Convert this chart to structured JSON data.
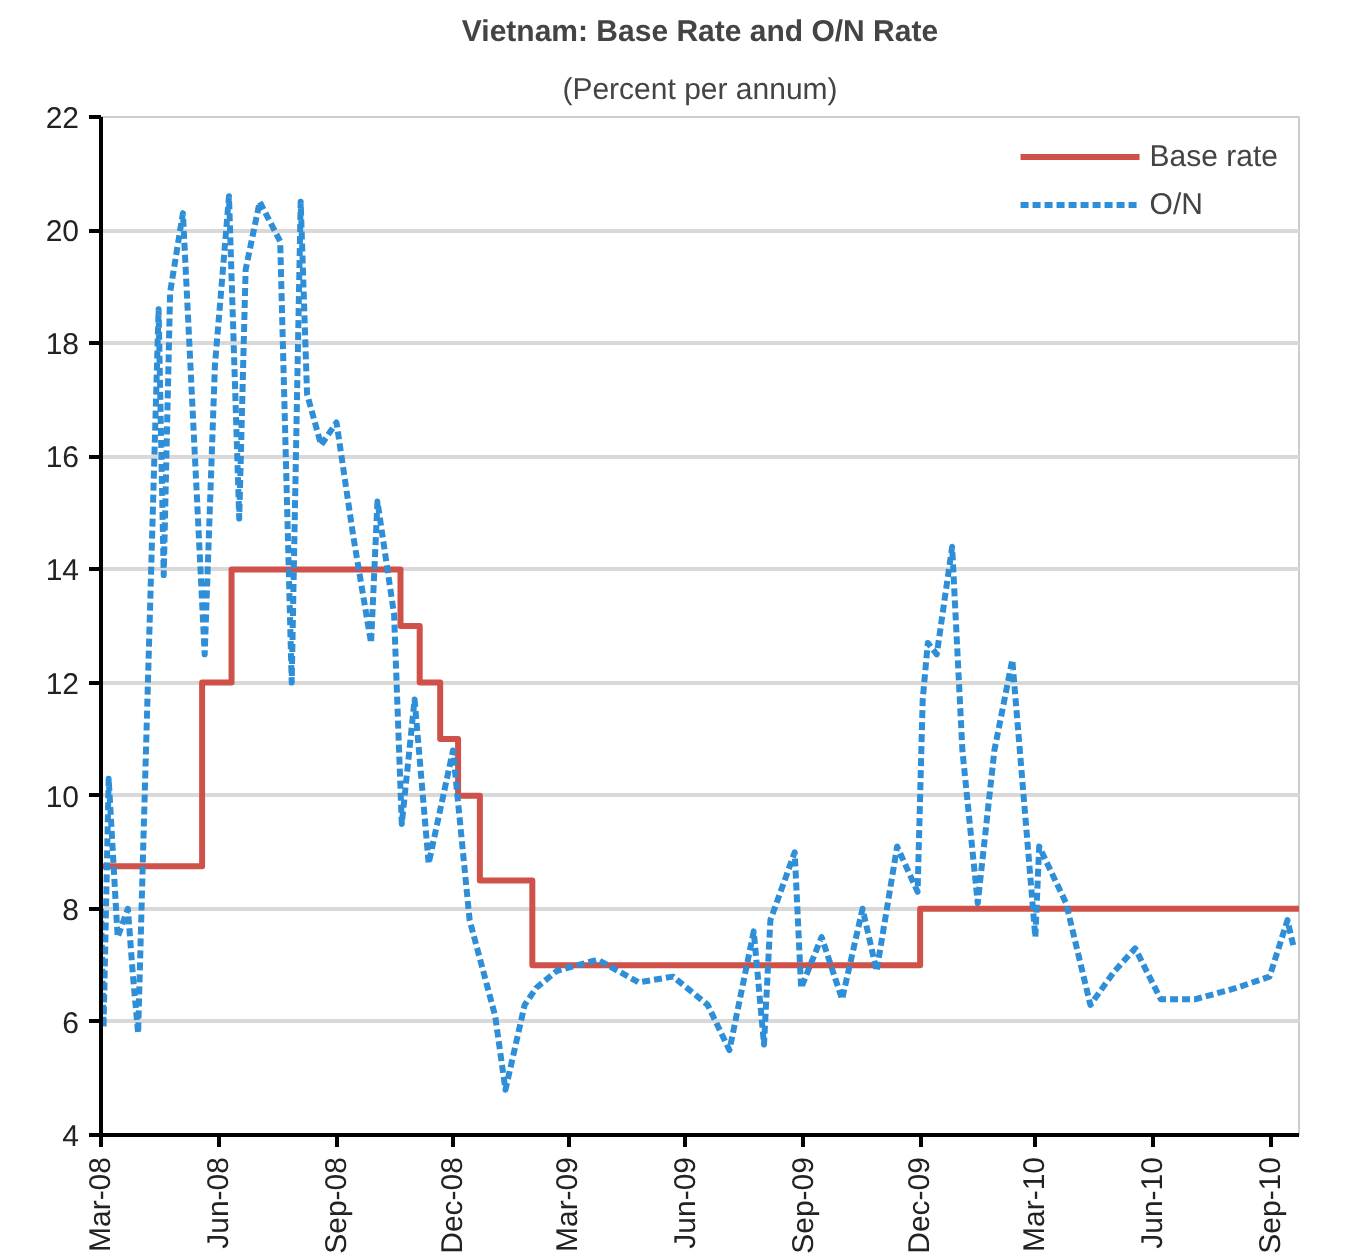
{
  "chart_data": {
    "type": "line",
    "title": "Vietnam: Base Rate and O/N Rate",
    "subtitle": "(Percent per annum)",
    "xlim": [
      "2008-03-01",
      "2010-09-23"
    ],
    "xticks": [
      {
        "value": "2008-03-01",
        "label": "Mar-08"
      },
      {
        "value": "2008-06-01",
        "label": "Jun-08"
      },
      {
        "value": "2008-09-01",
        "label": "Sep-08"
      },
      {
        "value": "2008-12-01",
        "label": "Dec-08"
      },
      {
        "value": "2009-03-01",
        "label": "Mar-09"
      },
      {
        "value": "2009-06-01",
        "label": "Jun-09"
      },
      {
        "value": "2009-09-01",
        "label": "Sep-09"
      },
      {
        "value": "2009-12-01",
        "label": "Dec-09"
      },
      {
        "value": "2010-03-01",
        "label": "Mar-10"
      },
      {
        "value": "2010-06-01",
        "label": "Jun-10"
      },
      {
        "value": "2010-09-01",
        "label": "Sep-10"
      }
    ],
    "ylim": [
      4,
      22
    ],
    "yticks": [
      4,
      6,
      8,
      10,
      12,
      14,
      16,
      18,
      20,
      22
    ],
    "grid": "y",
    "legend": "top right",
    "series": [
      {
        "name": "Base rate",
        "type": "step",
        "color": "#d0504a",
        "line_style": "solid",
        "x": [
          "2008-03-01",
          "2008-05-19",
          "2008-06-11",
          "2008-10-21",
          "2008-11-05",
          "2008-11-21",
          "2008-12-05",
          "2008-12-22",
          "2009-02-01",
          "2009-12-01",
          "2010-09-23"
        ],
        "values": [
          8.75,
          12,
          14,
          13,
          12,
          11,
          10,
          8.5,
          7,
          8,
          8
        ]
      },
      {
        "name": "O/N",
        "color": "#2e8fd8",
        "line_style": "dashed",
        "x": [
          "2008-03-01",
          "2008-03-03",
          "2008-03-07",
          "2008-03-14",
          "2008-03-22",
          "2008-03-26",
          "2008-03-30",
          "2008-04-03",
          "2008-04-15",
          "2008-04-19",
          "2008-04-24",
          "2008-05-04",
          "2008-05-21",
          "2008-05-29",
          "2008-06-09",
          "2008-06-17",
          "2008-06-22",
          "2008-07-03",
          "2008-07-19",
          "2008-07-28",
          "2008-08-04",
          "2008-08-09",
          "2008-08-20",
          "2008-09-01",
          "2008-09-14",
          "2008-09-28",
          "2008-10-03",
          "2008-10-16",
          "2008-10-22",
          "2008-11-01",
          "2008-11-12",
          "2008-12-01",
          "2008-12-14",
          "2009-01-03",
          "2009-01-11",
          "2009-01-26",
          "2009-02-04",
          "2009-02-20",
          "2009-03-24",
          "2009-04-25",
          "2009-05-22",
          "2009-06-18",
          "2009-07-05",
          "2009-07-24",
          "2009-08-01",
          "2009-08-06",
          "2009-08-25",
          "2009-08-30",
          "2009-09-15",
          "2009-10-01",
          "2009-10-17",
          "2009-10-28",
          "2009-11-13",
          "2009-11-29",
          "2009-12-03",
          "2009-12-07",
          "2009-12-14",
          "2009-12-26",
          "2010-01-03",
          "2010-01-15",
          "2010-01-28",
          "2010-02-11",
          "2010-03-01",
          "2010-03-04",
          "2010-03-25",
          "2010-04-13",
          "2010-05-02",
          "2010-05-18",
          "2010-06-07",
          "2010-07-04",
          "2010-08-05",
          "2010-08-31",
          "2010-09-14",
          "2010-09-19"
        ],
        "values": [
          8,
          5.9,
          10.3,
          7.5,
          8,
          6.8,
          5.8,
          9.1,
          18.6,
          13.9,
          18.9,
          20.3,
          12.5,
          17.6,
          20.6,
          14.9,
          19.3,
          20.5,
          19.8,
          12,
          20.5,
          17.1,
          16.2,
          16.6,
          14.6,
          12.7,
          15.2,
          13.2,
          9.5,
          11.7,
          8.8,
          10.8,
          7.8,
          6.1,
          4.8,
          6.3,
          6.6,
          6.9,
          7.1,
          6.7,
          6.8,
          6.3,
          5.5,
          7.6,
          5.6,
          7.8,
          9.0,
          6.6,
          7.5,
          6.4,
          8,
          6.9,
          9.1,
          8.3,
          11.7,
          12.7,
          12.5,
          14.4,
          10.8,
          8.1,
          10.8,
          12.4,
          7.5,
          9.1,
          8.1,
          6.3,
          6.9,
          7.3,
          6.4,
          6.4,
          6.6,
          6.8,
          7.8,
          7.3
        ]
      }
    ]
  }
}
